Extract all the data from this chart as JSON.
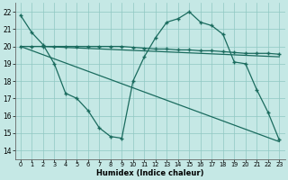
{
  "background_color": "#c5e8e5",
  "grid_color": "#8fc8c2",
  "line_color": "#1a6b5e",
  "xlabel": "Humidex (Indice chaleur)",
  "xlim": [
    -0.5,
    23.5
  ],
  "ylim": [
    13.5,
    22.5
  ],
  "yticks": [
    14,
    15,
    16,
    17,
    18,
    19,
    20,
    21,
    22
  ],
  "xticks": [
    0,
    1,
    2,
    3,
    4,
    5,
    6,
    7,
    8,
    9,
    10,
    11,
    12,
    13,
    14,
    15,
    16,
    17,
    18,
    19,
    20,
    21,
    22,
    23
  ],
  "line1_x": [
    0,
    1,
    2,
    3,
    4,
    5,
    6,
    7,
    8,
    9,
    10,
    11,
    12,
    13,
    14,
    15,
    16,
    17,
    18,
    19,
    20,
    21,
    22,
    23
  ],
  "line1_y": [
    21.8,
    20.8,
    20.1,
    19.0,
    17.3,
    17.0,
    16.3,
    15.3,
    14.8,
    14.7,
    18.0,
    19.4,
    20.5,
    21.4,
    21.6,
    22.0,
    21.4,
    21.2,
    20.7,
    19.1,
    19.0,
    17.5,
    16.2,
    14.6
  ],
  "line2_x": [
    0,
    1,
    2,
    3,
    4,
    5,
    6,
    7,
    8,
    9,
    10,
    11,
    12,
    13,
    14,
    15,
    16,
    17,
    18,
    19,
    20,
    21,
    22,
    23
  ],
  "line2_y": [
    20.0,
    20.0,
    20.0,
    20.0,
    20.0,
    20.0,
    20.0,
    20.0,
    20.0,
    20.0,
    19.95,
    19.9,
    19.85,
    19.85,
    19.8,
    19.8,
    19.75,
    19.75,
    19.7,
    19.65,
    19.6,
    19.6,
    19.6,
    19.55
  ],
  "line3_x": [
    0,
    23
  ],
  "line3_y": [
    20.0,
    14.5
  ],
  "line4_x": [
    2,
    23
  ],
  "line4_y": [
    20.0,
    19.4
  ]
}
